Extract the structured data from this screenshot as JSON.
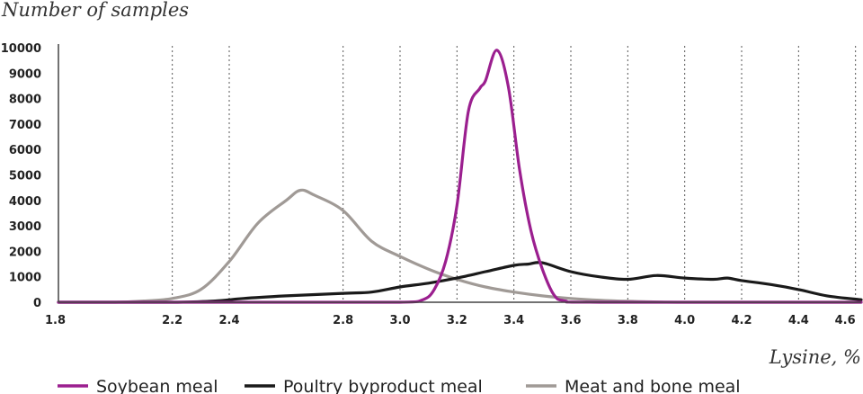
{
  "chart_data": {
    "type": "line",
    "title": "",
    "ylabel": "Number of samples",
    "xlabel": "Lysine, %",
    "xlim": [
      1.8,
      4.62
    ],
    "ylim": [
      0,
      10000
    ],
    "x_ticks": [
      "1.8",
      "2.2",
      "2.4",
      "2.8",
      "3.0",
      "3.2",
      "3.4",
      "3.6",
      "3.8",
      "4.0",
      "4.2",
      "4.4",
      "4.6"
    ],
    "x_tick_values": [
      1.8,
      2.2,
      2.4,
      2.8,
      3.0,
      3.2,
      3.4,
      3.6,
      3.8,
      4.0,
      4.2,
      4.4,
      4.6
    ],
    "y_ticks": [
      "0",
      "1000",
      "2000",
      "3000",
      "4000",
      "5000",
      "6000",
      "7000",
      "8000",
      "9000",
      "10000"
    ],
    "y_tick_values": [
      0,
      1000,
      2000,
      3000,
      4000,
      5000,
      6000,
      7000,
      8000,
      9000,
      10000
    ],
    "vertical_grid": "dotted",
    "legend_position": "bottom",
    "colors": {
      "soybean": "#9b1f8f",
      "poultry": "#1a1a1a",
      "meat": "#a09a96",
      "axis": "#444444"
    },
    "series": [
      {
        "name": "Soybean meal",
        "color": "#9b1f8f",
        "points": [
          [
            1.8,
            0
          ],
          [
            2.6,
            0
          ],
          [
            3.0,
            0
          ],
          [
            3.08,
            100
          ],
          [
            3.12,
            500
          ],
          [
            3.16,
            1600
          ],
          [
            3.2,
            3800
          ],
          [
            3.24,
            7500
          ],
          [
            3.28,
            8400
          ],
          [
            3.3,
            8700
          ],
          [
            3.34,
            9900
          ],
          [
            3.38,
            8500
          ],
          [
            3.42,
            5200
          ],
          [
            3.46,
            2800
          ],
          [
            3.5,
            1300
          ],
          [
            3.54,
            300
          ],
          [
            3.58,
            50
          ],
          [
            3.7,
            0
          ],
          [
            4.62,
            0
          ]
        ]
      },
      {
        "name": "Poultry byproduct meal",
        "color": "#1a1a1a",
        "points": [
          [
            1.8,
            0
          ],
          [
            2.2,
            0
          ],
          [
            2.35,
            50
          ],
          [
            2.45,
            150
          ],
          [
            2.6,
            250
          ],
          [
            2.8,
            350
          ],
          [
            2.9,
            400
          ],
          [
            3.0,
            600
          ],
          [
            3.1,
            750
          ],
          [
            3.2,
            950
          ],
          [
            3.3,
            1200
          ],
          [
            3.4,
            1450
          ],
          [
            3.45,
            1500
          ],
          [
            3.5,
            1550
          ],
          [
            3.6,
            1200
          ],
          [
            3.7,
            1000
          ],
          [
            3.8,
            900
          ],
          [
            3.9,
            1050
          ],
          [
            4.0,
            950
          ],
          [
            4.1,
            900
          ],
          [
            4.15,
            950
          ],
          [
            4.2,
            850
          ],
          [
            4.3,
            700
          ],
          [
            4.4,
            500
          ],
          [
            4.5,
            250
          ],
          [
            4.62,
            100
          ]
        ]
      },
      {
        "name": "Meat and bone meal",
        "color": "#a09a96",
        "points": [
          [
            1.8,
            0
          ],
          [
            2.0,
            0
          ],
          [
            2.1,
            50
          ],
          [
            2.2,
            150
          ],
          [
            2.3,
            500
          ],
          [
            2.4,
            1600
          ],
          [
            2.5,
            3100
          ],
          [
            2.6,
            4000
          ],
          [
            2.65,
            4400
          ],
          [
            2.7,
            4200
          ],
          [
            2.8,
            3600
          ],
          [
            2.9,
            2400
          ],
          [
            3.0,
            1800
          ],
          [
            3.1,
            1300
          ],
          [
            3.2,
            900
          ],
          [
            3.3,
            600
          ],
          [
            3.4,
            400
          ],
          [
            3.5,
            250
          ],
          [
            3.6,
            150
          ],
          [
            3.7,
            80
          ],
          [
            3.8,
            40
          ],
          [
            4.0,
            0
          ],
          [
            4.62,
            0
          ]
        ]
      }
    ]
  }
}
